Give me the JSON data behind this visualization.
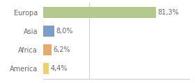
{
  "categories": [
    "Europa",
    "Asia",
    "Africa",
    "America"
  ],
  "values": [
    81.3,
    8.0,
    6.2,
    4.4
  ],
  "labels": [
    "81,3%",
    "8,0%",
    "6,2%",
    "4,4%"
  ],
  "bar_colors": [
    "#b5c98e",
    "#7b9dc7",
    "#e8a96e",
    "#f0d06e"
  ],
  "background_color": "#ffffff",
  "xlim": [
    0,
    105
  ],
  "bar_height": 0.6,
  "label_fontsize": 7,
  "tick_fontsize": 7,
  "vline_x": 33.3,
  "vline_color": "#cccccc",
  "spine_color": "#cccccc",
  "text_color": "#666666"
}
